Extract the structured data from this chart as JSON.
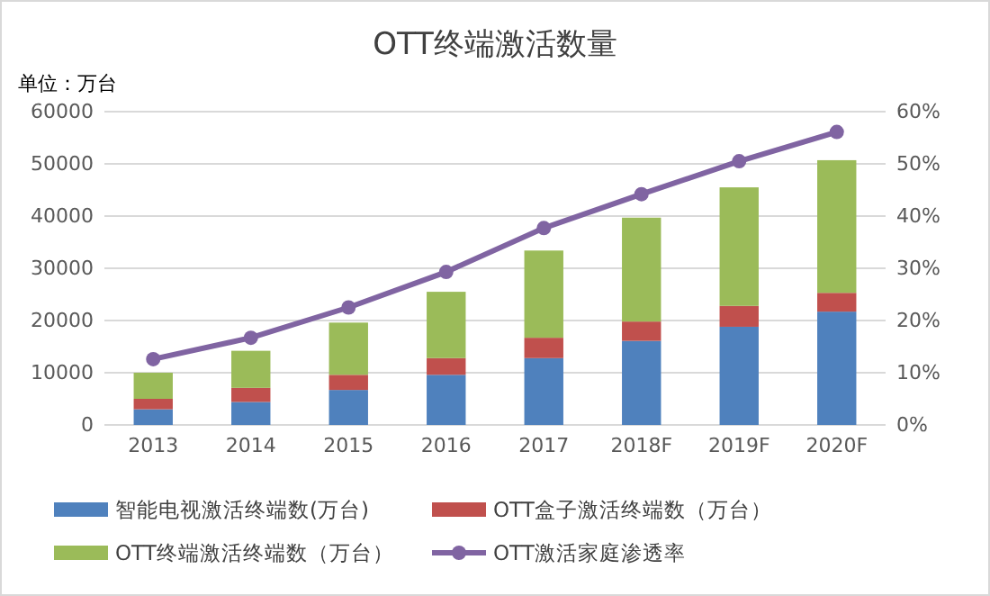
{
  "chart_data": {
    "type": "bar",
    "title": "OTT终端激活数量",
    "ylabel": "单位：万台",
    "categories": [
      "2013",
      "2014",
      "2015",
      "2016",
      "2017",
      "2018F",
      "2019F",
      "2020F"
    ],
    "stacked": true,
    "series": [
      {
        "name": "智能电视激活终端数(万台)",
        "color": "#4f81bd",
        "values": [
          3000,
          4400,
          6700,
          9600,
          12800,
          16100,
          18800,
          21700
        ]
      },
      {
        "name": "OTT盒子激活终端数（万台）",
        "color": "#c0504d",
        "values": [
          2000,
          2700,
          2900,
          3200,
          3900,
          3700,
          4000,
          3600
        ]
      },
      {
        "name": "OTT终端激活终端数（万台）",
        "color": "#9bbb59",
        "values": [
          5000,
          7100,
          10000,
          12700,
          16700,
          19900,
          22700,
          25400
        ]
      },
      {
        "name": "OTT激活家庭渗透率",
        "color": "#8064a2",
        "type": "line",
        "axis": "y2",
        "marker": "circle",
        "values": [
          12.6,
          16.7,
          22.5,
          29.3,
          37.7,
          44.2,
          50.5,
          56.1
        ]
      }
    ],
    "ylim": [
      0,
      60000
    ],
    "yticks": [
      0,
      10000,
      20000,
      30000,
      40000,
      50000,
      60000
    ],
    "y2lim": [
      0,
      60
    ],
    "y2ticks": [
      {
        "value": 0,
        "label": "0%"
      },
      {
        "value": 10,
        "label": "10%"
      },
      {
        "value": 20,
        "label": "20%"
      },
      {
        "value": 30,
        "label": "30%"
      },
      {
        "value": 40,
        "label": "40%"
      },
      {
        "value": 50,
        "label": "50%"
      },
      {
        "value": 60,
        "label": "60%"
      }
    ],
    "grid": "y",
    "legend": "bottom"
  }
}
